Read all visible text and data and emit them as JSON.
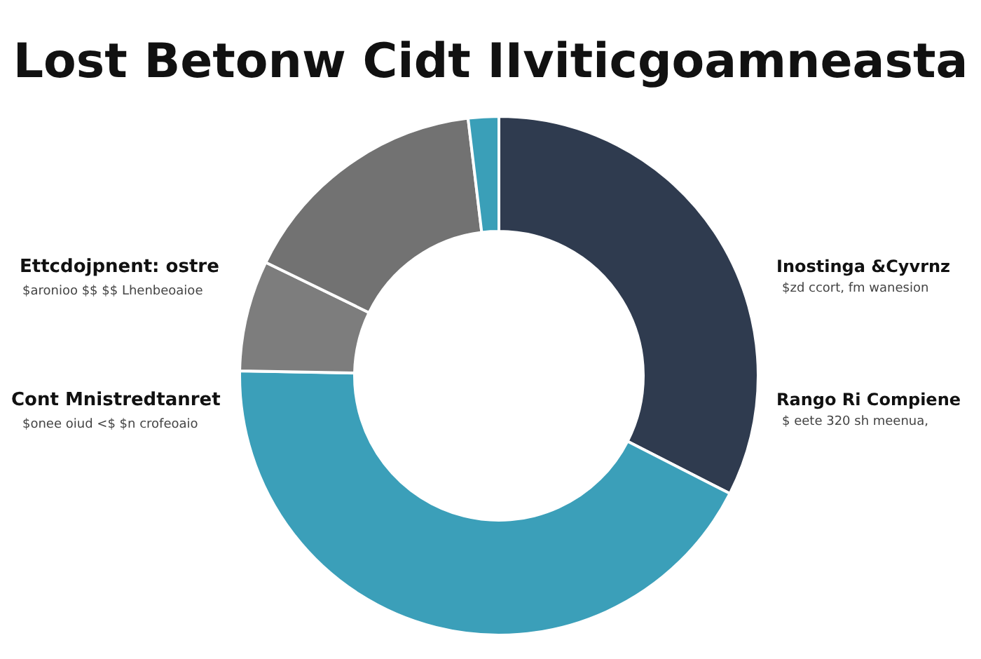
{
  "chart_data": {
    "type": "donut",
    "title": "Lost Betonw  Cidt  IIviticgoamneasta",
    "categories": [
      null,
      null,
      null,
      null,
      null
    ],
    "values": [
      32.5,
      42.8,
      6.9,
      15.9,
      1.9
    ],
    "colors": [
      "#2f3b4f",
      "#3b9fb9",
      "#7d7d7d",
      "#727272",
      "#3a9fb8"
    ],
    "annotations": [
      "Ettcdojpnent:  ostre",
      "$aronioo  $$  $$  Lhenbeoaioe",
      "Cont  Mnistredtanret",
      "$onee oiud  <$  $n crofeoaio",
      "Inostinga &Cyvrnz",
      "$zd ccort,  fm  wanesion",
      "Rango Ri Compiene",
      "$ eete  320  sh  meenua,"
    ]
  }
}
